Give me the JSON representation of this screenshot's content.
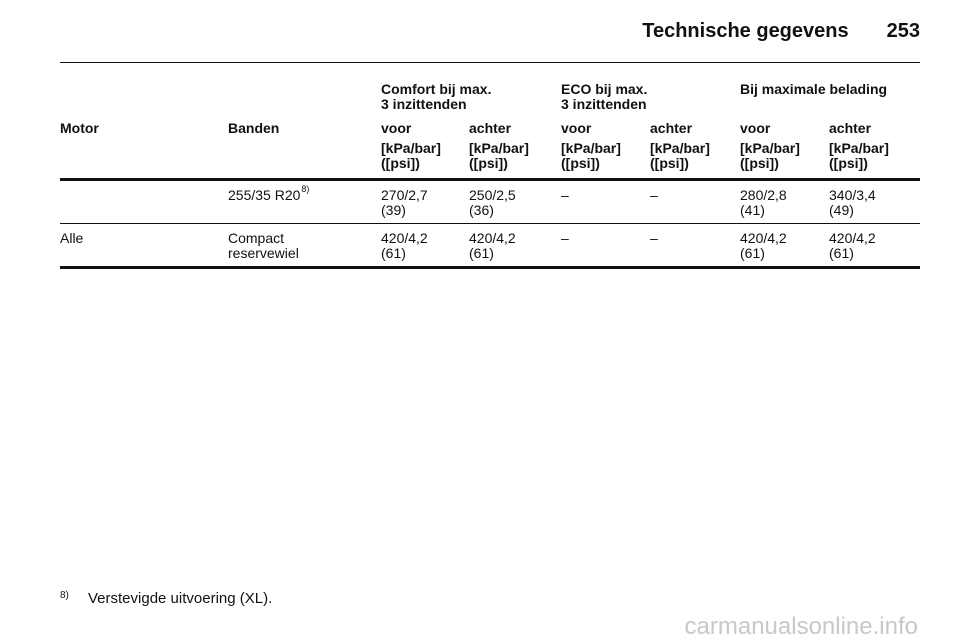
{
  "header": {
    "title": "Technische gegevens",
    "page": "253"
  },
  "table": {
    "groups": [
      [
        "Comfort bij max.",
        "3 inzittenden"
      ],
      [
        "ECO bij max.",
        "3 inzittenden"
      ],
      [
        "Bij maximale belading"
      ]
    ],
    "columns": [
      "Motor",
      "Banden",
      "voor",
      "achter",
      "voor",
      "achter",
      "voor",
      "achter"
    ],
    "units": [
      [
        "[kPa/bar]",
        "([psi])"
      ],
      [
        "[kPa/bar]",
        "([psi])"
      ],
      [
        "[kPa/bar]",
        "([psi])"
      ],
      [
        "[kPa/bar]",
        "([psi])"
      ],
      [
        "[kPa/bar]",
        "([psi])"
      ],
      [
        "[kPa/bar]",
        "([psi])"
      ]
    ],
    "rows": [
      {
        "banden": [
          "255/35 R20"
        ],
        "footnote_ref": "8)",
        "values": [
          [
            "270/2,7",
            "(39)"
          ],
          [
            "250/2,5",
            "(36)"
          ],
          [
            "–"
          ],
          [
            "–"
          ],
          [
            "280/2,8",
            "(41)"
          ],
          [
            "340/3,4",
            "(49)"
          ]
        ]
      },
      {
        "motor": "Alle",
        "banden": [
          "Compact",
          "reservewiel"
        ],
        "values": [
          [
            "420/4,2",
            "(61)"
          ],
          [
            "420/4,2",
            "(61)"
          ],
          [
            "–"
          ],
          [
            "–"
          ],
          [
            "420/4,2",
            "(61)"
          ],
          [
            "420/4,2",
            "(61)"
          ]
        ]
      }
    ]
  },
  "footnote": {
    "marker": "8)",
    "text": "Verstevigde uitvoering (XL)."
  },
  "watermark": "carmanualsonline.info"
}
